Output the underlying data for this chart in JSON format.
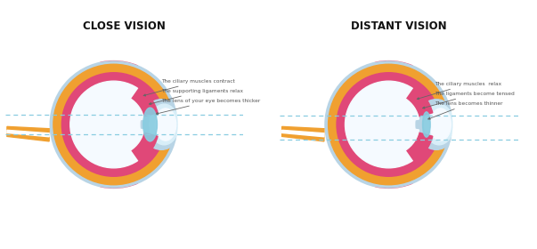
{
  "bg_color": "#ffffff",
  "title_left": "CLOSE VISION",
  "title_right": "DISTANT VISION",
  "title_fontsize": 8.5,
  "label_fontsize": 4.2,
  "colors": {
    "sclera": "#b8d4e5",
    "choroid": "#f0a030",
    "retina": "#e04878",
    "vitreous": "#f5faff",
    "cornea_outer": "#b8d4e5",
    "cornea_inner": "#d8eef8",
    "ciliary": "#e04878",
    "lens": "#88cce0",
    "optic_nerve": "#f0a030",
    "dashes": "#88cce0",
    "text": "#555555",
    "arrow": "#666666",
    "white": "#ffffff"
  },
  "close_labels": [
    "The ciliary muscles contract",
    "The supporting ligaments relax",
    "The lens of your eye becomes thicker"
  ],
  "distant_labels": [
    "The ciliary muscles  relax",
    "The ligaments become tensed",
    "The lens becomes thinner"
  ]
}
